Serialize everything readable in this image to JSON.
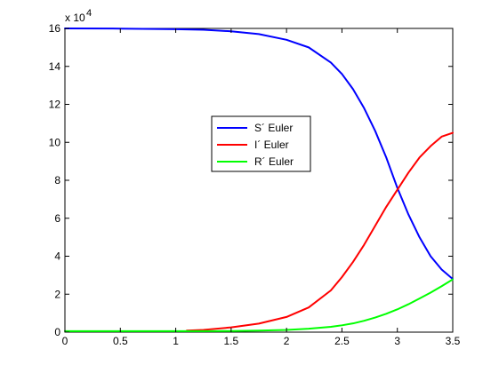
{
  "chart_data": {
    "type": "line",
    "title": "",
    "xlabel": "",
    "ylabel": "",
    "xlim": [
      0,
      3.5
    ],
    "ylim": [
      0,
      16
    ],
    "y_multiplier_label": "x 10",
    "y_multiplier_exponent": "4",
    "x_ticks": [
      0,
      0.5,
      1,
      1.5,
      2,
      2.5,
      3,
      3.5
    ],
    "x_tick_labels": [
      "0",
      "0.5",
      "1",
      "1.5",
      "2",
      "2.5",
      "3",
      "3.5"
    ],
    "y_ticks": [
      0,
      2,
      4,
      6,
      8,
      10,
      12,
      14,
      16
    ],
    "y_tick_labels": [
      "0",
      "2",
      "4",
      "6",
      "8",
      "10",
      "12",
      "14",
      "16"
    ],
    "grid": false,
    "legend_position": "center",
    "series": [
      {
        "name": "S´ Euler",
        "color": "#0000ff",
        "x": [
          0,
          0.5,
          1,
          1.25,
          1.5,
          1.75,
          2,
          2.2,
          2.4,
          2.5,
          2.6,
          2.7,
          2.8,
          2.9,
          3.0,
          3.1,
          3.2,
          3.3,
          3.4,
          3.5
        ],
        "y": [
          16,
          15.99,
          15.96,
          15.93,
          15.85,
          15.7,
          15.4,
          15.0,
          14.2,
          13.6,
          12.8,
          11.8,
          10.6,
          9.2,
          7.6,
          6.2,
          5.0,
          4.0,
          3.3,
          2.8
        ]
      },
      {
        "name": "I´ Euler",
        "color": "#ff0000",
        "x": [
          1.1,
          1.25,
          1.5,
          1.75,
          2,
          2.2,
          2.4,
          2.5,
          2.6,
          2.7,
          2.8,
          2.9,
          3.0,
          3.1,
          3.2,
          3.3,
          3.4,
          3.5
        ],
        "y": [
          0.08,
          0.12,
          0.25,
          0.45,
          0.8,
          1.3,
          2.2,
          2.9,
          3.7,
          4.6,
          5.6,
          6.6,
          7.5,
          8.4,
          9.2,
          9.8,
          10.3,
          10.5
        ]
      },
      {
        "name": "R´ Euler",
        "color": "#00ff00",
        "x": [
          0,
          0.5,
          1,
          1.25,
          1.5,
          1.75,
          2,
          2.2,
          2.4,
          2.5,
          2.6,
          2.7,
          2.8,
          2.9,
          3.0,
          3.1,
          3.2,
          3.3,
          3.4,
          3.5
        ],
        "y": [
          0.05,
          0.05,
          0.05,
          0.05,
          0.06,
          0.08,
          0.12,
          0.18,
          0.28,
          0.36,
          0.46,
          0.6,
          0.77,
          0.97,
          1.2,
          1.47,
          1.77,
          2.08,
          2.42,
          2.78
        ]
      }
    ]
  }
}
